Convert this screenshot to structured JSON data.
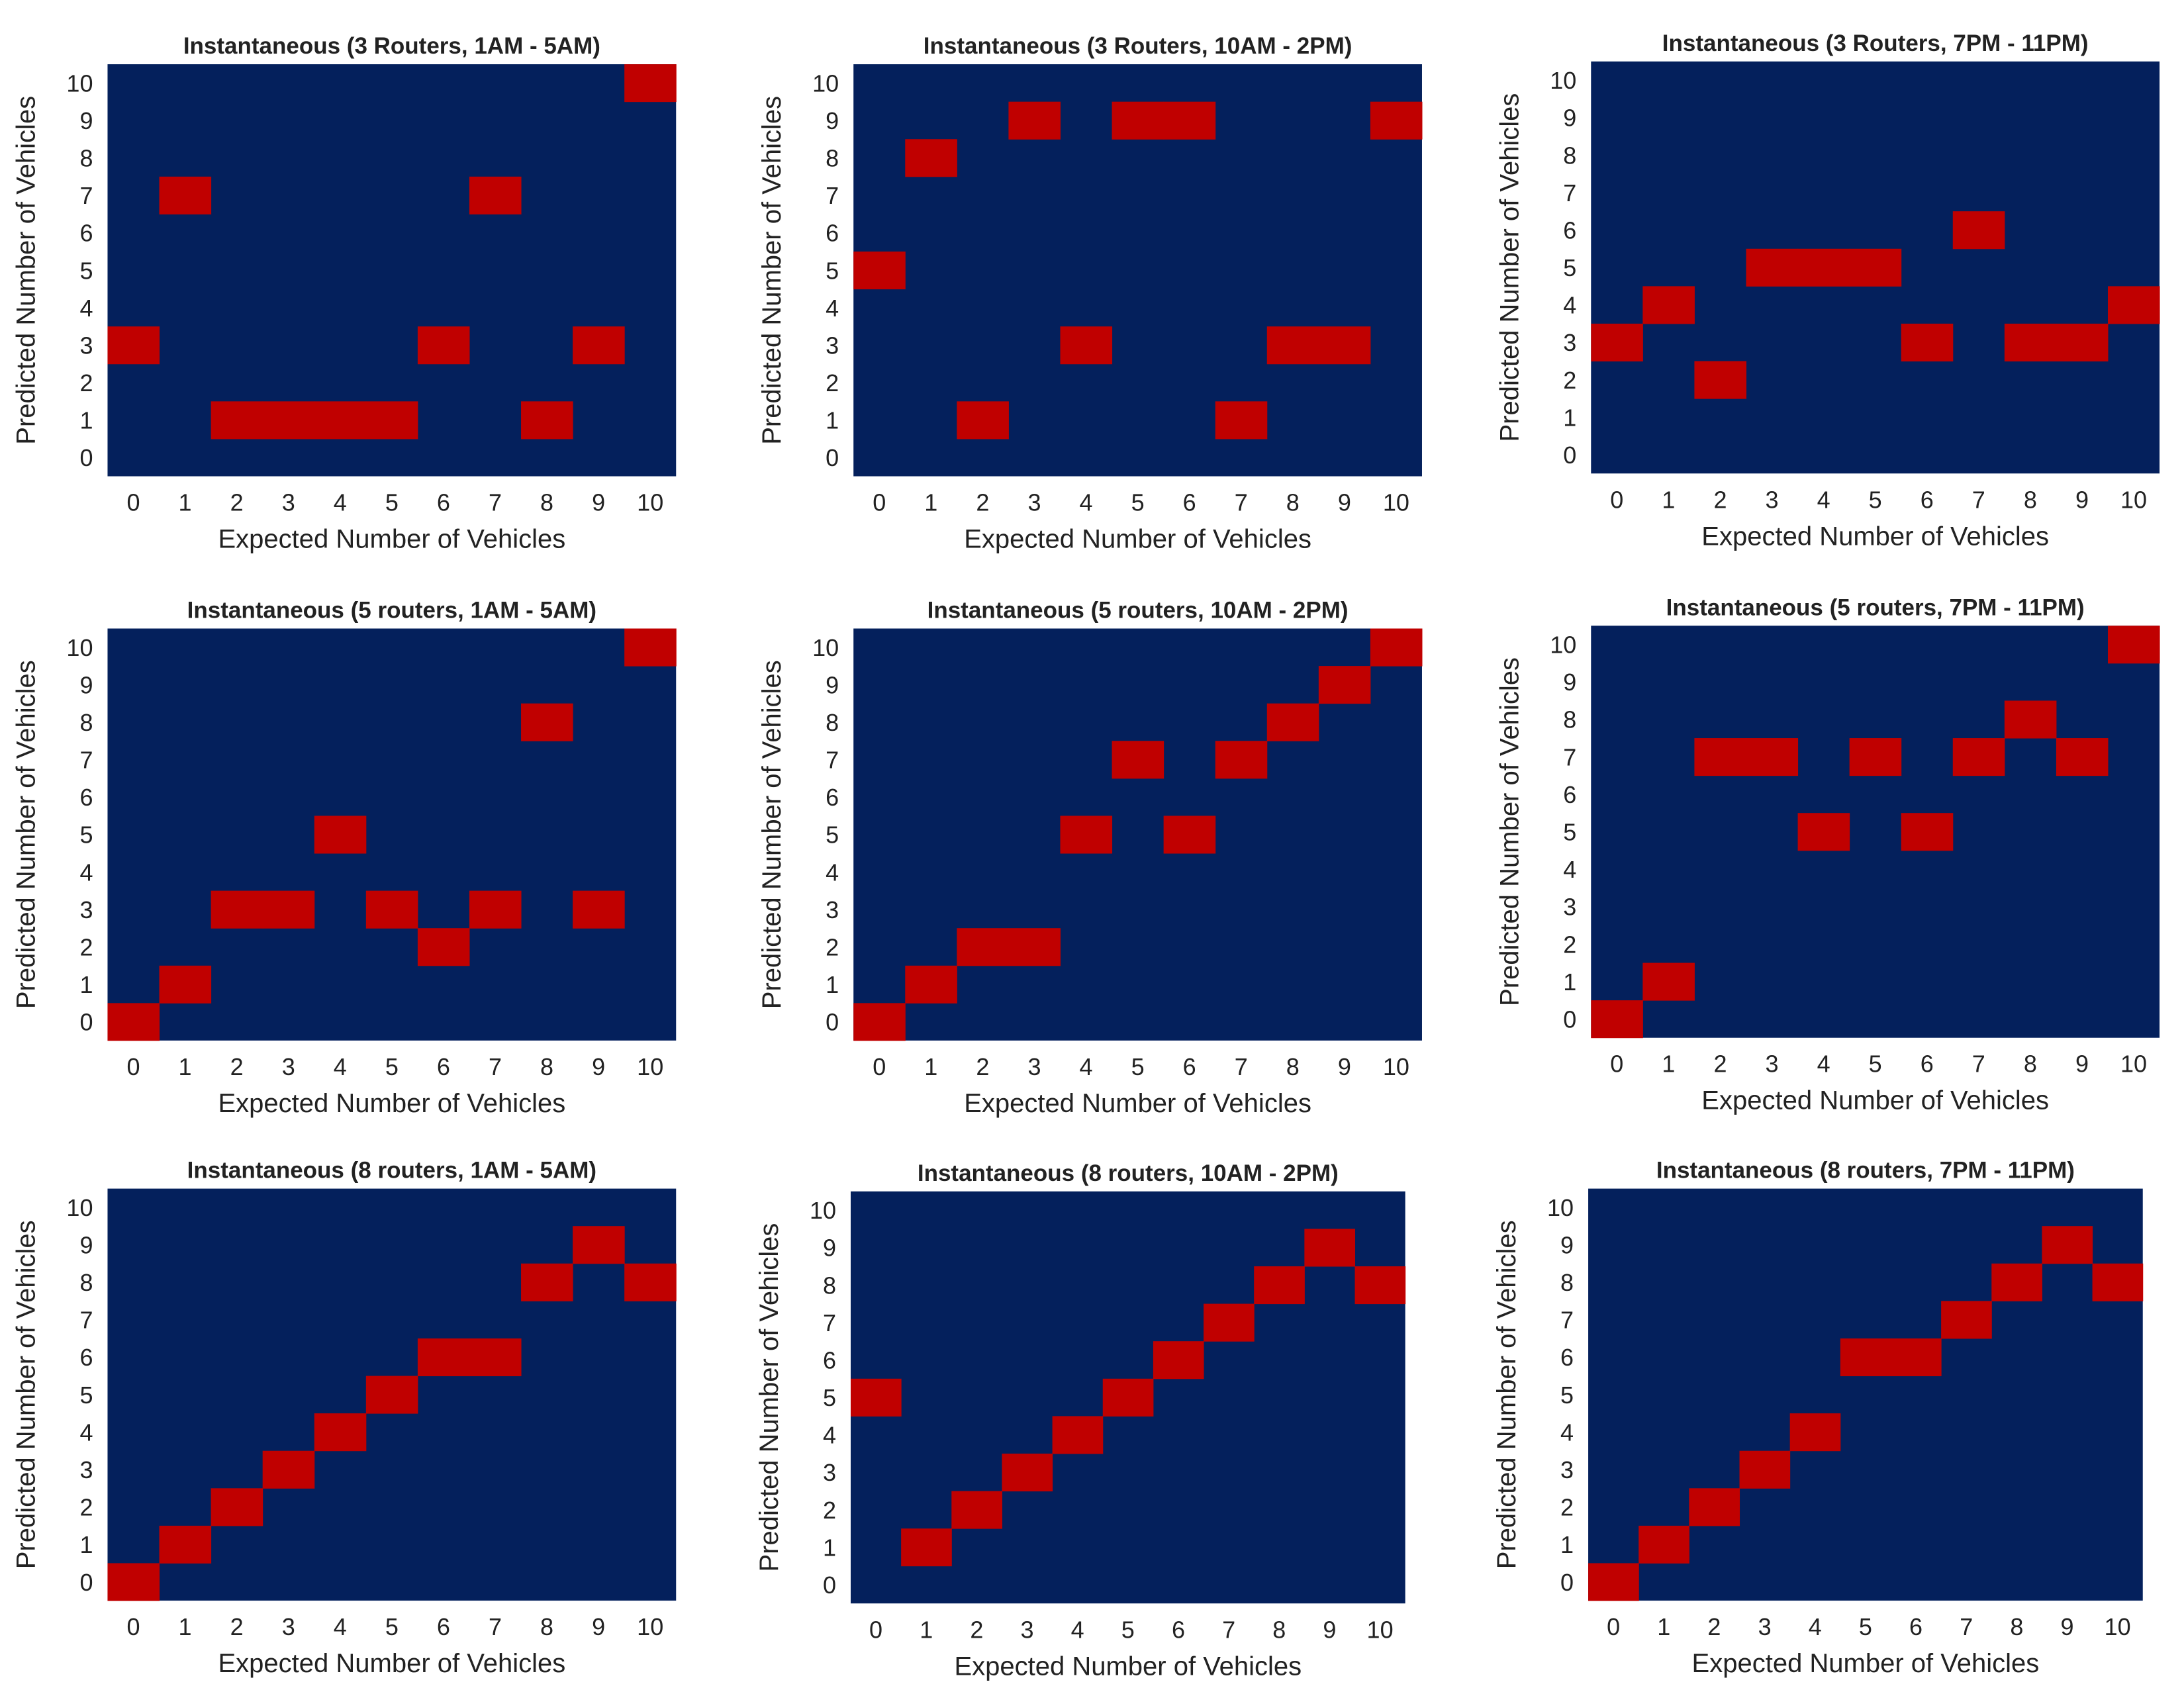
{
  "colors": {
    "background_cell": "#04205C",
    "marked_cell": "#C00000"
  },
  "chart_data": [
    {
      "type": "heatmap",
      "title": "Instantaneous (3 Routers, 1AM - 5AM)",
      "xlabel": "Expected Number of Vehicles",
      "ylabel": "Predicted Number of Vehicles",
      "x_ticks": [
        "0",
        "1",
        "2",
        "3",
        "4",
        "5",
        "6",
        "7",
        "8",
        "9",
        "10"
      ],
      "y_ticks": [
        "0",
        "1",
        "2",
        "3",
        "4",
        "5",
        "6",
        "7",
        "8",
        "9",
        "10"
      ],
      "predicted_per_expected": [
        3,
        7,
        1,
        1,
        1,
        1,
        3,
        7,
        1,
        3,
        10
      ]
    },
    {
      "type": "heatmap",
      "title": "Instantaneous (3 Routers, 10AM - 2PM)",
      "xlabel": "Expected Number of Vehicles",
      "ylabel": "Predicted Number of Vehicles",
      "x_ticks": [
        "0",
        "1",
        "2",
        "3",
        "4",
        "5",
        "6",
        "7",
        "8",
        "9",
        "10"
      ],
      "y_ticks": [
        "0",
        "1",
        "2",
        "3",
        "4",
        "5",
        "6",
        "7",
        "8",
        "9",
        "10"
      ],
      "predicted_per_expected": [
        5,
        8,
        1,
        9,
        3,
        9,
        9,
        1,
        3,
        3,
        9
      ]
    },
    {
      "type": "heatmap",
      "title": "Instantaneous (3 Routers, 7PM - 11PM)",
      "xlabel": "Expected Number of Vehicles",
      "ylabel": "Predicted Number of Vehicles",
      "x_ticks": [
        "0",
        "1",
        "2",
        "3",
        "4",
        "5",
        "6",
        "7",
        "8",
        "9",
        "10"
      ],
      "y_ticks": [
        "0",
        "1",
        "2",
        "3",
        "4",
        "5",
        "6",
        "7",
        "8",
        "9",
        "10"
      ],
      "predicted_per_expected": [
        3,
        4,
        2,
        5,
        5,
        5,
        3,
        6,
        3,
        3,
        4
      ]
    },
    {
      "type": "heatmap",
      "title": "Instantaneous (5 routers, 1AM - 5AM)",
      "xlabel": "Expected Number of Vehicles",
      "ylabel": "Predicted Number of Vehicles",
      "x_ticks": [
        "0",
        "1",
        "2",
        "3",
        "4",
        "5",
        "6",
        "7",
        "8",
        "9",
        "10"
      ],
      "y_ticks": [
        "0",
        "1",
        "2",
        "3",
        "4",
        "5",
        "6",
        "7",
        "8",
        "9",
        "10"
      ],
      "predicted_per_expected": [
        0,
        1,
        3,
        3,
        5,
        3,
        2,
        3,
        8,
        3,
        10
      ]
    },
    {
      "type": "heatmap",
      "title": "Instantaneous (5 routers, 10AM - 2PM)",
      "xlabel": "Expected Number of Vehicles",
      "ylabel": "Predicted Number of Vehicles",
      "x_ticks": [
        "0",
        "1",
        "2",
        "3",
        "4",
        "5",
        "6",
        "7",
        "8",
        "9",
        "10"
      ],
      "y_ticks": [
        "0",
        "1",
        "2",
        "3",
        "4",
        "5",
        "6",
        "7",
        "8",
        "9",
        "10"
      ],
      "predicted_per_expected": [
        0,
        1,
        2,
        2,
        5,
        7,
        5,
        7,
        8,
        9,
        10
      ]
    },
    {
      "type": "heatmap",
      "title": "Instantaneous (5 routers, 7PM - 11PM)",
      "xlabel": "Expected Number of Vehicles",
      "ylabel": "Predicted Number of Vehicles",
      "x_ticks": [
        "0",
        "1",
        "2",
        "3",
        "4",
        "5",
        "6",
        "7",
        "8",
        "9",
        "10"
      ],
      "y_ticks": [
        "0",
        "1",
        "2",
        "3",
        "4",
        "5",
        "6",
        "7",
        "8",
        "9",
        "10"
      ],
      "predicted_per_expected": [
        0,
        1,
        7,
        7,
        5,
        7,
        5,
        7,
        8,
        7,
        10
      ]
    },
    {
      "type": "heatmap",
      "title": "Instantaneous (8 routers, 1AM - 5AM)",
      "xlabel": "Expected Number of Vehicles",
      "ylabel": "Predicted Number of Vehicles",
      "x_ticks": [
        "0",
        "1",
        "2",
        "3",
        "4",
        "5",
        "6",
        "7",
        "8",
        "9",
        "10"
      ],
      "y_ticks": [
        "0",
        "1",
        "2",
        "3",
        "4",
        "5",
        "6",
        "7",
        "8",
        "9",
        "10"
      ],
      "predicted_per_expected": [
        0,
        1,
        2,
        3,
        4,
        5,
        6,
        6,
        8,
        9,
        8
      ]
    },
    {
      "type": "heatmap",
      "title": "Instantaneous (8 routers, 10AM - 2PM)",
      "xlabel": "Expected Number of Vehicles",
      "ylabel": "Predicted Number of Vehicles",
      "x_ticks": [
        "0",
        "1",
        "2",
        "3",
        "4",
        "5",
        "6",
        "7",
        "8",
        "9",
        "10"
      ],
      "y_ticks": [
        "0",
        "1",
        "2",
        "3",
        "4",
        "5",
        "6",
        "7",
        "8",
        "9",
        "10"
      ],
      "predicted_per_expected": [
        5,
        1,
        2,
        3,
        4,
        5,
        6,
        7,
        8,
        9,
        8
      ]
    },
    {
      "type": "heatmap",
      "title": "Instantaneous (8 routers, 7PM - 11PM)",
      "xlabel": "Expected Number of Vehicles",
      "ylabel": "Predicted Number of Vehicles",
      "x_ticks": [
        "0",
        "1",
        "2",
        "3",
        "4",
        "5",
        "6",
        "7",
        "8",
        "9",
        "10"
      ],
      "y_ticks": [
        "0",
        "1",
        "2",
        "3",
        "4",
        "5",
        "6",
        "7",
        "8",
        "9",
        "10"
      ],
      "predicted_per_expected": [
        0,
        1,
        2,
        3,
        4,
        6,
        6,
        7,
        8,
        9,
        8
      ]
    }
  ]
}
